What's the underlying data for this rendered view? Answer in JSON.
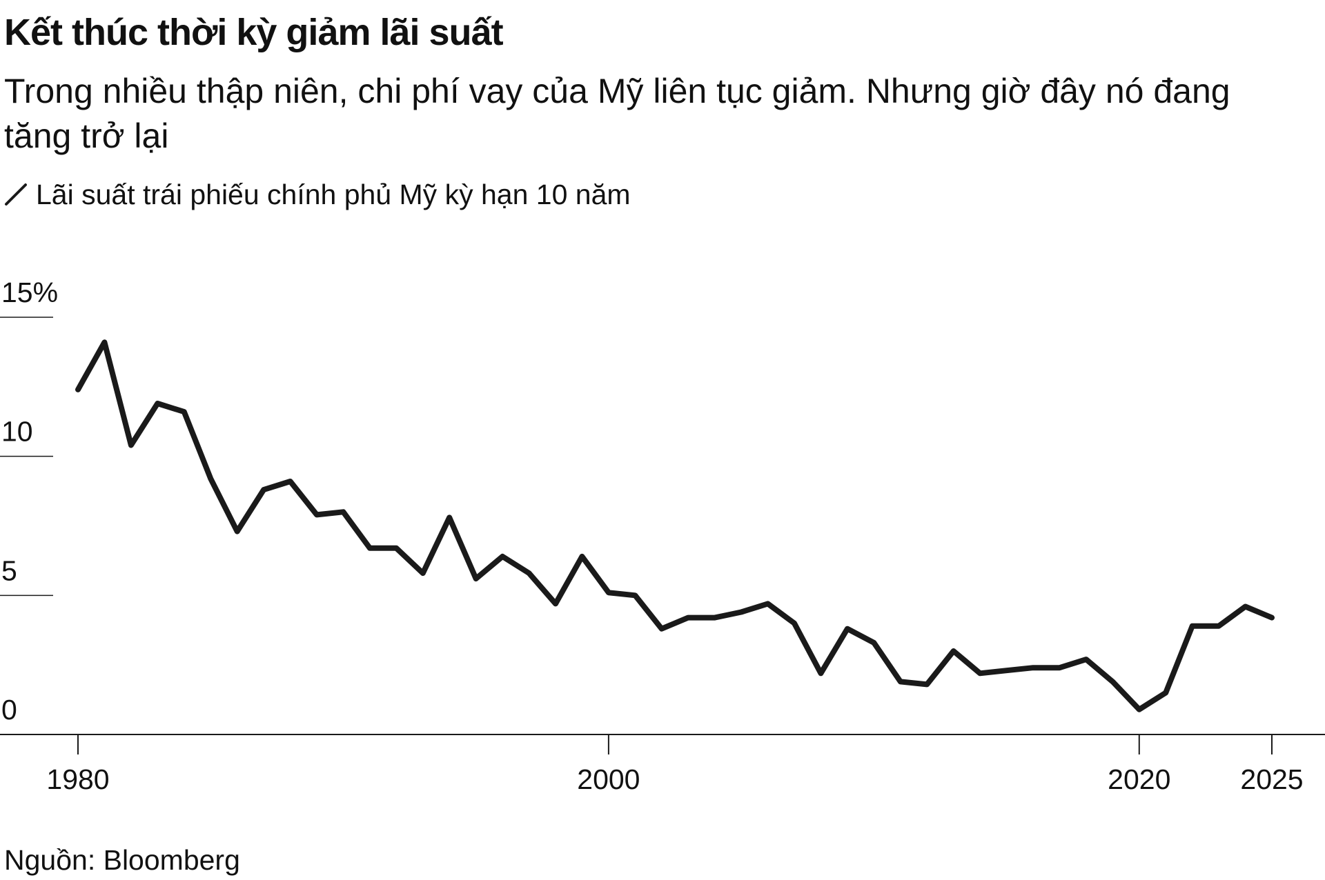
{
  "title": "Kết thúc thời kỳ giảm lãi suất",
  "subtitle": "Trong nhiều thập niên, chi phí vay của Mỹ liên tục giảm. Nhưng giờ đây nó đang tăng trở lại",
  "source": "Nguồn: Bloomberg",
  "colors": {
    "line": "#1a1a1a",
    "axis": "#1a1a1a",
    "background": "#ffffff"
  },
  "chart_data": {
    "type": "line",
    "title": "Kết thúc thời kỳ giảm lãi suất",
    "subtitle": "Trong nhiều thập niên, chi phí vay của Mỹ liên tục giảm. Nhưng giờ đây nó đang tăng trở lại",
    "xlabel": "",
    "ylabel": "",
    "x_ticks": [
      "1980",
      "2000",
      "2020",
      "2025"
    ],
    "y_ticks": [
      "0",
      "5",
      "10",
      "15%"
    ],
    "ylim": [
      0,
      15
    ],
    "xlim": [
      1979,
      2026
    ],
    "grid": false,
    "legend_position": "top-left",
    "series": [
      {
        "name": "Lãi suất trái phiếu chính phủ Mỹ kỳ hạn 10 năm",
        "x": [
          1980,
          1981,
          1982,
          1983,
          1984,
          1985,
          1986,
          1987,
          1988,
          1989,
          1990,
          1991,
          1992,
          1993,
          1994,
          1995,
          1996,
          1997,
          1998,
          1999,
          2000,
          2001,
          2002,
          2003,
          2004,
          2005,
          2006,
          2007,
          2008,
          2009,
          2010,
          2011,
          2012,
          2013,
          2014,
          2015,
          2016,
          2017,
          2018,
          2019,
          2020,
          2021,
          2022,
          2023,
          2024,
          2025
        ],
        "values": [
          12.4,
          14.1,
          10.4,
          11.9,
          11.6,
          9.2,
          7.3,
          8.8,
          9.1,
          7.9,
          8.0,
          6.7,
          6.7,
          5.8,
          7.8,
          5.6,
          6.4,
          5.8,
          4.7,
          6.4,
          5.1,
          5.0,
          3.8,
          4.2,
          4.2,
          4.4,
          4.7,
          4.0,
          2.2,
          3.8,
          3.3,
          1.9,
          1.8,
          3.0,
          2.2,
          2.3,
          2.4,
          2.4,
          2.7,
          1.9,
          0.9,
          1.5,
          3.9,
          3.9,
          4.6,
          4.2
        ]
      }
    ]
  }
}
